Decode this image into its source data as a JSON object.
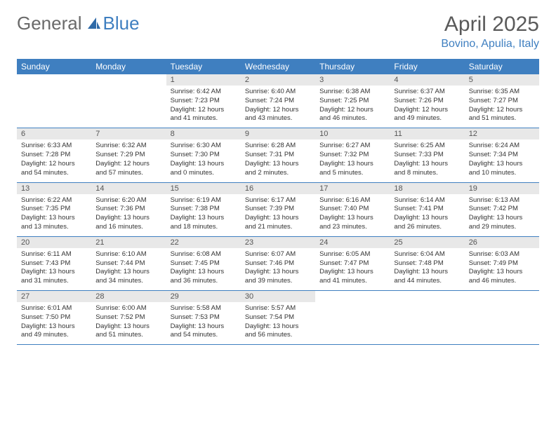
{
  "logo": {
    "text1": "General",
    "text2": "Blue"
  },
  "title": "April 2025",
  "location": "Bovino, Apulia, Italy",
  "colors": {
    "header_bg": "#3f7fc0",
    "header_fg": "#ffffff",
    "daynum_bg": "#e8e8e8",
    "border": "#3f7fc0",
    "title_fg": "#5a5a5a",
    "location_fg": "#3f7fc0"
  },
  "dow": [
    "Sunday",
    "Monday",
    "Tuesday",
    "Wednesday",
    "Thursday",
    "Friday",
    "Saturday"
  ],
  "weeks": [
    [
      {
        "n": "",
        "sr": "",
        "ss": "",
        "dl": ""
      },
      {
        "n": "",
        "sr": "",
        "ss": "",
        "dl": ""
      },
      {
        "n": "1",
        "sr": "Sunrise: 6:42 AM",
        "ss": "Sunset: 7:23 PM",
        "dl": "Daylight: 12 hours and 41 minutes."
      },
      {
        "n": "2",
        "sr": "Sunrise: 6:40 AM",
        "ss": "Sunset: 7:24 PM",
        "dl": "Daylight: 12 hours and 43 minutes."
      },
      {
        "n": "3",
        "sr": "Sunrise: 6:38 AM",
        "ss": "Sunset: 7:25 PM",
        "dl": "Daylight: 12 hours and 46 minutes."
      },
      {
        "n": "4",
        "sr": "Sunrise: 6:37 AM",
        "ss": "Sunset: 7:26 PM",
        "dl": "Daylight: 12 hours and 49 minutes."
      },
      {
        "n": "5",
        "sr": "Sunrise: 6:35 AM",
        "ss": "Sunset: 7:27 PM",
        "dl": "Daylight: 12 hours and 51 minutes."
      }
    ],
    [
      {
        "n": "6",
        "sr": "Sunrise: 6:33 AM",
        "ss": "Sunset: 7:28 PM",
        "dl": "Daylight: 12 hours and 54 minutes."
      },
      {
        "n": "7",
        "sr": "Sunrise: 6:32 AM",
        "ss": "Sunset: 7:29 PM",
        "dl": "Daylight: 12 hours and 57 minutes."
      },
      {
        "n": "8",
        "sr": "Sunrise: 6:30 AM",
        "ss": "Sunset: 7:30 PM",
        "dl": "Daylight: 13 hours and 0 minutes."
      },
      {
        "n": "9",
        "sr": "Sunrise: 6:28 AM",
        "ss": "Sunset: 7:31 PM",
        "dl": "Daylight: 13 hours and 2 minutes."
      },
      {
        "n": "10",
        "sr": "Sunrise: 6:27 AM",
        "ss": "Sunset: 7:32 PM",
        "dl": "Daylight: 13 hours and 5 minutes."
      },
      {
        "n": "11",
        "sr": "Sunrise: 6:25 AM",
        "ss": "Sunset: 7:33 PM",
        "dl": "Daylight: 13 hours and 8 minutes."
      },
      {
        "n": "12",
        "sr": "Sunrise: 6:24 AM",
        "ss": "Sunset: 7:34 PM",
        "dl": "Daylight: 13 hours and 10 minutes."
      }
    ],
    [
      {
        "n": "13",
        "sr": "Sunrise: 6:22 AM",
        "ss": "Sunset: 7:35 PM",
        "dl": "Daylight: 13 hours and 13 minutes."
      },
      {
        "n": "14",
        "sr": "Sunrise: 6:20 AM",
        "ss": "Sunset: 7:36 PM",
        "dl": "Daylight: 13 hours and 16 minutes."
      },
      {
        "n": "15",
        "sr": "Sunrise: 6:19 AM",
        "ss": "Sunset: 7:38 PM",
        "dl": "Daylight: 13 hours and 18 minutes."
      },
      {
        "n": "16",
        "sr": "Sunrise: 6:17 AM",
        "ss": "Sunset: 7:39 PM",
        "dl": "Daylight: 13 hours and 21 minutes."
      },
      {
        "n": "17",
        "sr": "Sunrise: 6:16 AM",
        "ss": "Sunset: 7:40 PM",
        "dl": "Daylight: 13 hours and 23 minutes."
      },
      {
        "n": "18",
        "sr": "Sunrise: 6:14 AM",
        "ss": "Sunset: 7:41 PM",
        "dl": "Daylight: 13 hours and 26 minutes."
      },
      {
        "n": "19",
        "sr": "Sunrise: 6:13 AM",
        "ss": "Sunset: 7:42 PM",
        "dl": "Daylight: 13 hours and 29 minutes."
      }
    ],
    [
      {
        "n": "20",
        "sr": "Sunrise: 6:11 AM",
        "ss": "Sunset: 7:43 PM",
        "dl": "Daylight: 13 hours and 31 minutes."
      },
      {
        "n": "21",
        "sr": "Sunrise: 6:10 AM",
        "ss": "Sunset: 7:44 PM",
        "dl": "Daylight: 13 hours and 34 minutes."
      },
      {
        "n": "22",
        "sr": "Sunrise: 6:08 AM",
        "ss": "Sunset: 7:45 PM",
        "dl": "Daylight: 13 hours and 36 minutes."
      },
      {
        "n": "23",
        "sr": "Sunrise: 6:07 AM",
        "ss": "Sunset: 7:46 PM",
        "dl": "Daylight: 13 hours and 39 minutes."
      },
      {
        "n": "24",
        "sr": "Sunrise: 6:05 AM",
        "ss": "Sunset: 7:47 PM",
        "dl": "Daylight: 13 hours and 41 minutes."
      },
      {
        "n": "25",
        "sr": "Sunrise: 6:04 AM",
        "ss": "Sunset: 7:48 PM",
        "dl": "Daylight: 13 hours and 44 minutes."
      },
      {
        "n": "26",
        "sr": "Sunrise: 6:03 AM",
        "ss": "Sunset: 7:49 PM",
        "dl": "Daylight: 13 hours and 46 minutes."
      }
    ],
    [
      {
        "n": "27",
        "sr": "Sunrise: 6:01 AM",
        "ss": "Sunset: 7:50 PM",
        "dl": "Daylight: 13 hours and 49 minutes."
      },
      {
        "n": "28",
        "sr": "Sunrise: 6:00 AM",
        "ss": "Sunset: 7:52 PM",
        "dl": "Daylight: 13 hours and 51 minutes."
      },
      {
        "n": "29",
        "sr": "Sunrise: 5:58 AM",
        "ss": "Sunset: 7:53 PM",
        "dl": "Daylight: 13 hours and 54 minutes."
      },
      {
        "n": "30",
        "sr": "Sunrise: 5:57 AM",
        "ss": "Sunset: 7:54 PM",
        "dl": "Daylight: 13 hours and 56 minutes."
      },
      {
        "n": "",
        "sr": "",
        "ss": "",
        "dl": ""
      },
      {
        "n": "",
        "sr": "",
        "ss": "",
        "dl": ""
      },
      {
        "n": "",
        "sr": "",
        "ss": "",
        "dl": ""
      }
    ]
  ]
}
